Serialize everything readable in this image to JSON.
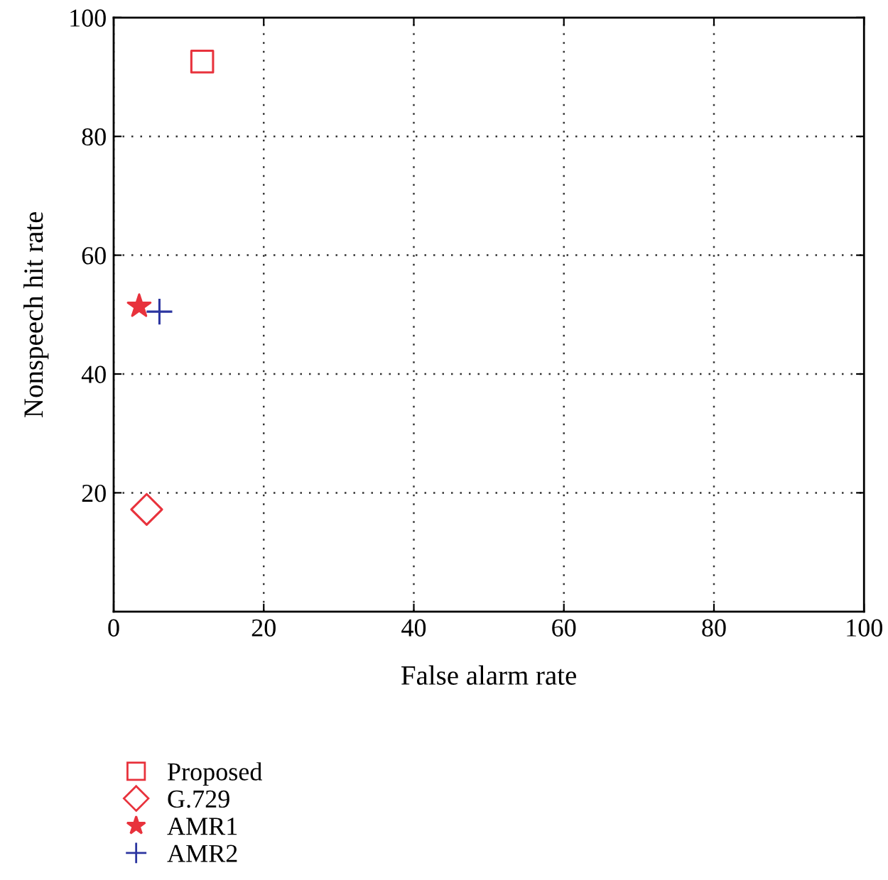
{
  "chart_data": {
    "type": "scatter",
    "xlabel": "False alarm rate",
    "ylabel": "Nonspeech hit rate",
    "xlim": [
      0,
      100
    ],
    "ylim": [
      0,
      100
    ],
    "xticks": [
      0,
      20,
      40,
      60,
      80,
      100
    ],
    "yticks": [
      20,
      40,
      60,
      80,
      100
    ],
    "grid": true,
    "legend": "bottom",
    "series": [
      {
        "name": "Proposed",
        "color": "#e8323c",
        "marker": "square",
        "x": [
          11.8
        ],
        "values": [
          92.6
        ]
      },
      {
        "name": "G.729",
        "color": "#e8323c",
        "marker": "diamond",
        "x": [
          4.4
        ],
        "values": [
          17.2
        ]
      },
      {
        "name": "AMR1",
        "color": "#e8323c",
        "marker": "star",
        "x": [
          3.4
        ],
        "values": [
          51.4
        ]
      },
      {
        "name": "AMR2",
        "color": "#2b35a0",
        "marker": "cross",
        "x": [
          6.1
        ],
        "values": [
          50.5
        ]
      }
    ]
  }
}
